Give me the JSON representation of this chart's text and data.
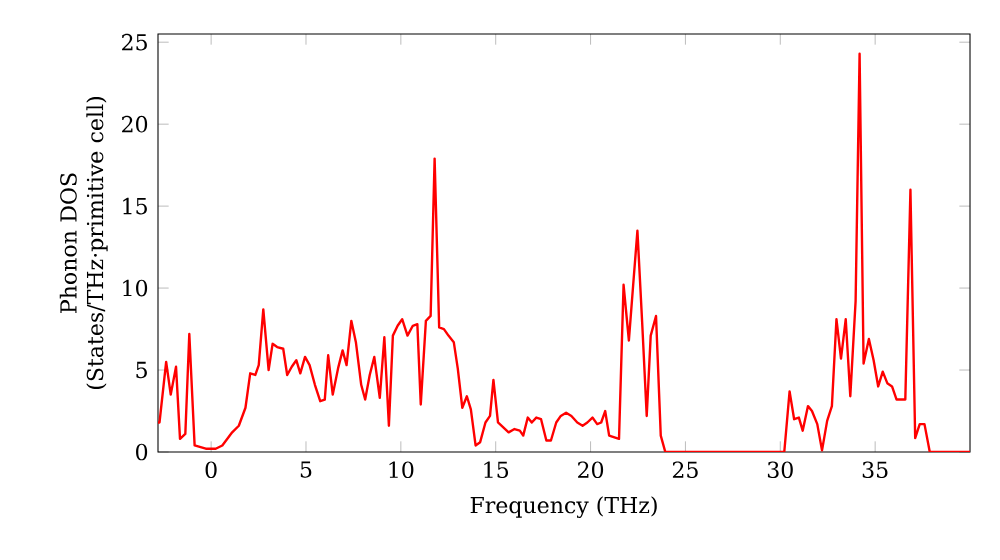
{
  "chart_data": {
    "type": "line",
    "xlabel": "Frequency (THz)",
    "ylabel": "Phonon DOS (States/THz·primitive cell)",
    "x": [
      -2.8,
      -2.72,
      -2.37,
      -2.13,
      -1.85,
      -1.64,
      -1.36,
      -1.15,
      -0.87,
      -0.28,
      0.24,
      0.59,
      1.11,
      1.46,
      1.81,
      2.06,
      2.33,
      2.51,
      2.75,
      3.03,
      3.24,
      3.48,
      3.8,
      4.01,
      4.25,
      4.49,
      4.7,
      4.95,
      5.19,
      5.47,
      5.75,
      5.99,
      6.17,
      6.41,
      6.69,
      6.93,
      7.14,
      7.39,
      7.63,
      7.91,
      8.12,
      8.36,
      8.6,
      8.89,
      9.13,
      9.37,
      9.58,
      9.83,
      10.07,
      10.35,
      10.63,
      10.87,
      11.05,
      11.32,
      11.57,
      11.78,
      12.02,
      12.27,
      12.51,
      12.79,
      13.0,
      13.24,
      13.48,
      13.69,
      13.94,
      14.18,
      14.46,
      14.7,
      14.88,
      15.12,
      15.4,
      15.68,
      15.99,
      16.27,
      16.45,
      16.69,
      16.9,
      17.14,
      17.39,
      17.67,
      17.91,
      18.19,
      18.43,
      18.71,
      18.99,
      19.3,
      19.58,
      19.83,
      20.1,
      20.35,
      20.56,
      20.77,
      20.98,
      21.5,
      21.74,
      22.02,
      22.26,
      22.47,
      22.72,
      22.96,
      23.17,
      23.45,
      23.7,
      23.94,
      30.21,
      30.49,
      30.73,
      30.98,
      31.18,
      31.46,
      31.67,
      31.95,
      32.2,
      32.47,
      32.72,
      32.96,
      33.2,
      33.45,
      33.69,
      33.97,
      34.18,
      34.39,
      34.67,
      34.92,
      35.16,
      35.4,
      35.64,
      35.89,
      36.13,
      36.59,
      36.86,
      37.11,
      37.35,
      37.6,
      37.88,
      40
    ],
    "values": [
      1.8,
      1.8,
      5.5,
      3.5,
      5.2,
      0.8,
      1.1,
      7.2,
      0.4,
      0.2,
      0.2,
      0.4,
      1.2,
      1.6,
      2.7,
      4.8,
      4.7,
      5.3,
      8.7,
      5.0,
      6.6,
      6.4,
      6.3,
      4.7,
      5.2,
      5.6,
      4.8,
      5.8,
      5.3,
      4.1,
      3.1,
      3.2,
      5.9,
      3.5,
      5.1,
      6.2,
      5.3,
      8.0,
      6.7,
      4.1,
      3.2,
      4.7,
      5.8,
      3.3,
      7.0,
      1.6,
      7.1,
      7.7,
      8.1,
      7.1,
      7.7,
      7.8,
      2.9,
      8.0,
      8.3,
      17.9,
      7.6,
      7.5,
      7.1,
      6.7,
      5.1,
      2.7,
      3.4,
      2.6,
      0.4,
      0.6,
      1.8,
      2.2,
      4.4,
      1.8,
      1.5,
      1.2,
      1.4,
      1.3,
      1.0,
      2.1,
      1.8,
      2.1,
      2.0,
      0.7,
      0.7,
      1.8,
      2.2,
      2.4,
      2.2,
      1.8,
      1.6,
      1.8,
      2.1,
      1.7,
      1.8,
      2.5,
      1.0,
      0.8,
      10.2,
      6.8,
      10.4,
      13.5,
      7.9,
      2.2,
      7.1,
      8.3,
      1.0,
      0,
      0,
      3.7,
      2.0,
      2.1,
      1.3,
      2.8,
      2.5,
      1.7,
      0.1,
      1.9,
      2.8,
      8.1,
      5.7,
      8.1,
      3.4,
      9.2,
      24.3,
      5.4,
      6.9,
      5.6,
      4.0,
      4.9,
      4.2,
      4.0,
      3.2,
      3.2,
      16.0,
      0.85,
      1.7,
      1.7,
      0,
      0
    ],
    "color": "#ff0000",
    "xlim": [
      -2.8,
      40
    ],
    "ylim": [
      0,
      25.5
    ],
    "xticks": [
      0,
      5,
      10,
      15,
      20,
      25,
      30,
      35
    ],
    "yticks": [
      0,
      5,
      10,
      15,
      20,
      25
    ],
    "grid": false
  }
}
